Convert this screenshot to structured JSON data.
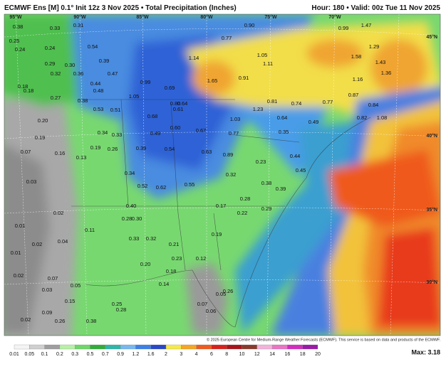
{
  "header": {
    "title": "ECMWF Ens [M] 0.1° Init 12z 3 Nov 2025 • Total Precipitation (Inches)",
    "valid": "Hour: 180 • Valid: 00z Tue 11 Nov 2025"
  },
  "map": {
    "longitudes": [
      "95°W",
      "90°W",
      "85°W",
      "80°W",
      "75°W",
      "70°W"
    ],
    "latitudes": [
      "45°N",
      "40°N",
      "35°N",
      "30°N"
    ],
    "labels": [
      "0.38",
      "0.33",
      "0.25",
      "0.24",
      "0.24",
      "0.31",
      "0.54",
      "0.39",
      "0.47",
      "0.44",
      "0.48",
      "0.29",
      "0.30",
      "0.36",
      "0.32",
      "0.18",
      "0.18",
      "0.27",
      "0.38",
      "0.53",
      "0.51",
      "1.05",
      "0.99",
      "0.69",
      "0.80",
      "0.64",
      "0.61",
      "1.14",
      "1.65",
      "0.91",
      "0.77",
      "0.90",
      "1.05",
      "1.11",
      "0.99",
      "1.47",
      "1.29",
      "1.58",
      "1.43",
      "1.36",
      "1.16",
      "0.87",
      "0.84",
      "1.08",
      "0.82",
      "1.23",
      "0.81",
      "0.74",
      "0.77",
      "0.64",
      "0.49",
      "0.35",
      "1.03",
      "0.77",
      "0.89",
      "0.67",
      "0.60",
      "0.68",
      "0.49",
      "0.54",
      "0.63",
      "0.39",
      "0.33",
      "0.34",
      "0.26",
      "0.19",
      "0.20",
      "0.19",
      "0.16",
      "0.13",
      "0.34",
      "0.52",
      "0.62",
      "0.55",
      "0.32",
      "0.23",
      "0.44",
      "0.45",
      "0.38",
      "0.39",
      "0.28",
      "0.40",
      "0.30",
      "0.28",
      "0.17",
      "0.22",
      "0.29",
      "0.33",
      "0.32",
      "0.21",
      "0.23",
      "0.12",
      "0.19",
      "0.20",
      "0.18",
      "0.14",
      "0.11",
      "0.07",
      "0.03",
      "0.02",
      "0.01",
      "0.02",
      "0.01",
      "0.04",
      "0.02",
      "0.07",
      "0.03",
      "0.05",
      "0.09",
      "0.15",
      "0.25",
      "0.28",
      "0.38",
      "0.26",
      "0.02",
      "0.07",
      "0.06",
      "0.05",
      "0.26"
    ],
    "credit": "© 2025 European Centre for Medium-Range Weather Forecasts (ECMWF). This service is based on data and products of the ECMWF."
  },
  "legend": {
    "values": [
      0.01,
      0.05,
      0.1,
      0.2,
      0.3,
      0.5,
      0.7,
      0.9,
      1.2,
      1.6,
      2,
      3,
      4,
      6,
      8,
      10,
      12,
      14,
      16,
      18,
      20
    ],
    "colors": [
      "#f4f4f4",
      "#cfcfcf",
      "#9e9e9e",
      "#b6f0a6",
      "#6fd66a",
      "#2fae3a",
      "#2fb6a8",
      "#78b8f0",
      "#3d7fe6",
      "#2a48c8",
      "#f7e84a",
      "#f5a623",
      "#ef5a1e",
      "#d9201c",
      "#a8141a",
      "#8a3a2a",
      "#f2b2d8",
      "#ea74c4",
      "#d22cc0",
      "#9a1aa8",
      "#6a0a8a"
    ],
    "max": "Max: 3.18"
  }
}
